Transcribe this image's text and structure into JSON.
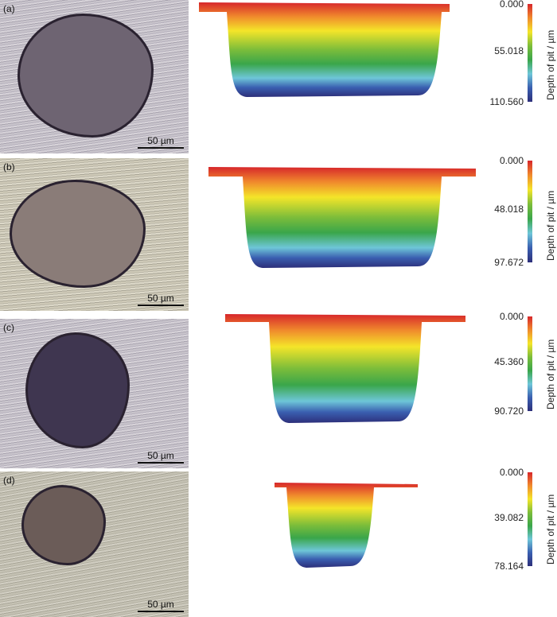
{
  "panels": [
    {
      "label": "(a)",
      "scale_bar": "50 µm",
      "colorbar": {
        "ticks": [
          "0.000",
          "55.018",
          "110.560"
        ],
        "title": "Depth of pit / µm"
      }
    },
    {
      "label": "(b)",
      "scale_bar": "50 µm",
      "colorbar": {
        "ticks": [
          "0.000",
          "48.018",
          "97.672"
        ],
        "title": "Depth of pit / µm"
      }
    },
    {
      "label": "(c)",
      "scale_bar": "50 µm",
      "colorbar": {
        "ticks": [
          "0.000",
          "45.360",
          "90.720"
        ],
        "title": "Depth of pit / µm"
      }
    },
    {
      "label": "(d)",
      "scale_bar": "50 µm",
      "colorbar": {
        "ticks": [
          "0.000",
          "39.082",
          "78.164"
        ],
        "title": "Depth of pit / µm"
      }
    }
  ],
  "colors": {
    "shallow": "#d7262b",
    "mid": "#3aa64a",
    "deep": "#2d2f7a"
  }
}
